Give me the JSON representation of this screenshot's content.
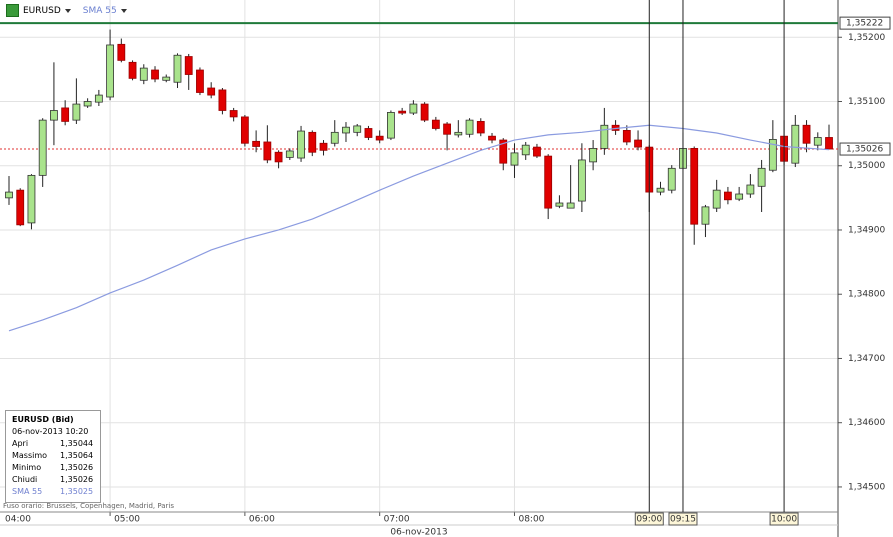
{
  "chart_data": {
    "type": "candlestick",
    "symbol": "EURUSD",
    "x_label": "06-nov-2013",
    "timezone_note": "Fuso orario: Brussels, Copenhagen, Madrid, Paris",
    "x": [
      "04:15",
      "04:20",
      "04:25",
      "04:30",
      "04:35",
      "04:40",
      "04:45",
      "04:50",
      "04:55",
      "05:00",
      "05:05",
      "05:10",
      "05:15",
      "05:20",
      "05:25",
      "05:30",
      "05:35",
      "05:40",
      "05:45",
      "05:50",
      "05:55",
      "06:00",
      "06:05",
      "06:10",
      "06:15",
      "06:20",
      "06:25",
      "06:30",
      "06:35",
      "06:40",
      "06:45",
      "06:50",
      "06:55",
      "07:00",
      "07:05",
      "07:10",
      "07:15",
      "07:20",
      "07:25",
      "07:30",
      "07:35",
      "07:40",
      "07:45",
      "07:50",
      "07:55",
      "08:00",
      "08:05",
      "08:10",
      "08:15",
      "08:20",
      "08:25",
      "08:30",
      "08:35",
      "08:40",
      "08:45",
      "08:50",
      "08:55",
      "09:00",
      "09:05",
      "09:10",
      "09:15",
      "09:20",
      "09:25",
      "09:30",
      "09:35",
      "09:40",
      "09:45",
      "09:50",
      "09:55",
      "10:00",
      "10:05",
      "10:10",
      "10:15",
      "10:20"
    ],
    "open": [
      1.3495,
      1.34962,
      1.34911,
      1.34985,
      1.35071,
      1.3509,
      1.35071,
      1.35093,
      1.35099,
      1.35107,
      1.35189,
      1.35161,
      1.35133,
      1.35149,
      1.35133,
      1.3513,
      1.3517,
      1.35149,
      1.35121,
      1.35118,
      1.35086,
      1.35076,
      1.35038,
      1.35037,
      1.35021,
      1.35013,
      1.35012,
      1.35052,
      1.35035,
      1.35035,
      1.35051,
      1.35052,
      1.35058,
      1.35046,
      1.35043,
      1.35085,
      1.35082,
      1.35096,
      1.35071,
      1.35065,
      1.35048,
      1.35049,
      1.35069,
      1.35046,
      1.3504,
      1.35001,
      1.35017,
      1.35029,
      1.35015,
      1.34937,
      1.34934,
      1.34945,
      1.35006,
      1.35027,
      1.35063,
      1.35055,
      1.3504,
      1.35029,
      1.34959,
      1.34962,
      1.34996,
      1.35027,
      1.34909,
      1.34934,
      1.34959,
      1.34948,
      1.34956,
      1.34968,
      1.34993,
      1.35046,
      1.35004,
      1.35063,
      1.35032,
      1.35044
    ],
    "high": [
      1.34984,
      1.34965,
      1.34987,
      1.35074,
      1.35161,
      1.35102,
      1.35136,
      1.35105,
      1.35118,
      1.35212,
      1.35198,
      1.35164,
      1.35158,
      1.35155,
      1.35142,
      1.35175,
      1.35174,
      1.35153,
      1.3513,
      1.35121,
      1.3509,
      1.35079,
      1.35055,
      1.35063,
      1.35024,
      1.35027,
      1.35062,
      1.35055,
      1.3504,
      1.35071,
      1.35068,
      1.35065,
      1.35062,
      1.35055,
      1.35086,
      1.3509,
      1.35102,
      1.35099,
      1.35076,
      1.35068,
      1.35071,
      1.35074,
      1.35074,
      1.35051,
      1.35043,
      1.35035,
      1.35037,
      1.35034,
      1.35018,
      1.34954,
      1.35001,
      1.35035,
      1.3504,
      1.3509,
      1.35071,
      1.35063,
      1.35055,
      1.35032,
      1.34975,
      1.35001,
      1.35052,
      1.3503,
      1.34939,
      1.34978,
      1.34967,
      1.34967,
      1.34987,
      1.35009,
      1.35071,
      1.35071,
      1.35079,
      1.35071,
      1.35052,
      1.35064
    ],
    "low": [
      1.34939,
      1.34906,
      1.34901,
      1.34967,
      1.35032,
      1.35063,
      1.35065,
      1.3509,
      1.35093,
      1.35102,
      1.35161,
      1.35133,
      1.35127,
      1.3513,
      1.3513,
      1.35121,
      1.35118,
      1.3511,
      1.35105,
      1.3508,
      1.35069,
      1.3503,
      1.35021,
      1.35004,
      1.34996,
      1.35009,
      1.35006,
      1.35015,
      1.35016,
      1.3503,
      1.35037,
      1.35046,
      1.3504,
      1.35035,
      1.3504,
      1.35079,
      1.35079,
      1.35068,
      1.35055,
      1.35024,
      1.35044,
      1.35044,
      1.35046,
      1.35035,
      1.34993,
      1.34981,
      1.35009,
      1.35012,
      1.34917,
      1.34934,
      1.34934,
      1.34928,
      1.34993,
      1.35017,
      1.35048,
      1.35032,
      1.35024,
      1.34928,
      1.34954,
      1.34957,
      1.34993,
      1.34877,
      1.34889,
      1.34928,
      1.3494,
      1.34945,
      1.3495,
      1.34928,
      1.3499,
      1.35001,
      1.34998,
      1.35021,
      1.35024,
      1.35026
    ],
    "close": [
      1.34959,
      1.34908,
      1.34985,
      1.35071,
      1.35086,
      1.35069,
      1.35096,
      1.351,
      1.3511,
      1.35188,
      1.35164,
      1.35136,
      1.35152,
      1.35135,
      1.35138,
      1.35172,
      1.35142,
      1.35114,
      1.3511,
      1.35086,
      1.35076,
      1.35035,
      1.3503,
      1.35009,
      1.35006,
      1.35023,
      1.35054,
      1.35021,
      1.35024,
      1.35052,
      1.3506,
      1.35062,
      1.35044,
      1.3504,
      1.35083,
      1.35082,
      1.35096,
      1.35071,
      1.35058,
      1.35049,
      1.35052,
      1.35071,
      1.35051,
      1.3504,
      1.35004,
      1.3502,
      1.35032,
      1.35015,
      1.34934,
      1.34942,
      1.34942,
      1.35009,
      1.35027,
      1.35063,
      1.35055,
      1.35037,
      1.35029,
      1.34959,
      1.34965,
      1.34996,
      1.35027,
      1.34909,
      1.34936,
      1.34962,
      1.34947,
      1.34956,
      1.3497,
      1.34996,
      1.35041,
      1.35007,
      1.35063,
      1.35035,
      1.35044,
      1.35026
    ],
    "up_color": "#a9e38c",
    "down_color": "#e00000",
    "overlay": {
      "name": "SMA 55",
      "color": "#8b9be0",
      "x": [
        "04:15",
        "04:30",
        "04:45",
        "05:00",
        "05:15",
        "05:30",
        "05:45",
        "06:00",
        "06:15",
        "06:30",
        "06:45",
        "07:00",
        "07:15",
        "07:30",
        "07:45",
        "08:00",
        "08:15",
        "08:30",
        "08:45",
        "09:00",
        "09:15",
        "09:30",
        "09:45",
        "10:00",
        "10:20"
      ],
      "values": [
        1.34743,
        1.3476,
        1.34779,
        1.34802,
        1.34822,
        1.34845,
        1.34869,
        1.34886,
        1.349,
        1.34917,
        1.34939,
        1.34962,
        1.34984,
        1.35004,
        1.35024,
        1.3504,
        1.35048,
        1.35052,
        1.35058,
        1.35063,
        1.35058,
        1.35051,
        1.3504,
        1.3503,
        1.35025
      ]
    },
    "price_lines": [
      {
        "value": 1.35222,
        "label": "1,35222",
        "color": "#1f7a3a"
      },
      {
        "value": 1.35026,
        "label": "1,35026",
        "color": "#e03030"
      }
    ],
    "markers": [
      "09:00",
      "09:15",
      "10:00"
    ],
    "xlim": [
      "04:11",
      "10:24"
    ],
    "xticks": [
      "04:00",
      "05:00",
      "06:00",
      "07:00",
      "08:00"
    ],
    "ylim": [
      1.34461,
      1.35258
    ],
    "yticks": [
      {
        "value": 1.345,
        "label": "1,34500"
      },
      {
        "value": 1.346,
        "label": "1,34600"
      },
      {
        "value": 1.347,
        "label": "1,34700"
      },
      {
        "value": 1.348,
        "label": "1,34800"
      },
      {
        "value": 1.349,
        "label": "1,34900"
      },
      {
        "value": 1.35,
        "label": "1,35000"
      },
      {
        "value": 1.351,
        "label": "1,35100"
      },
      {
        "value": 1.352,
        "label": "1,35200"
      }
    ],
    "grid": true
  },
  "info_box": {
    "title": "EURUSD (Bid)",
    "timestamp": "06-nov-2013 10:20",
    "rows": [
      [
        "Apri",
        "1,35044"
      ],
      [
        "Massimo",
        "1,35064"
      ],
      [
        "Minimo",
        "1,35026"
      ],
      [
        "Chiudi",
        "1,35026"
      ],
      [
        "SMA 55",
        "1,35025"
      ]
    ]
  }
}
